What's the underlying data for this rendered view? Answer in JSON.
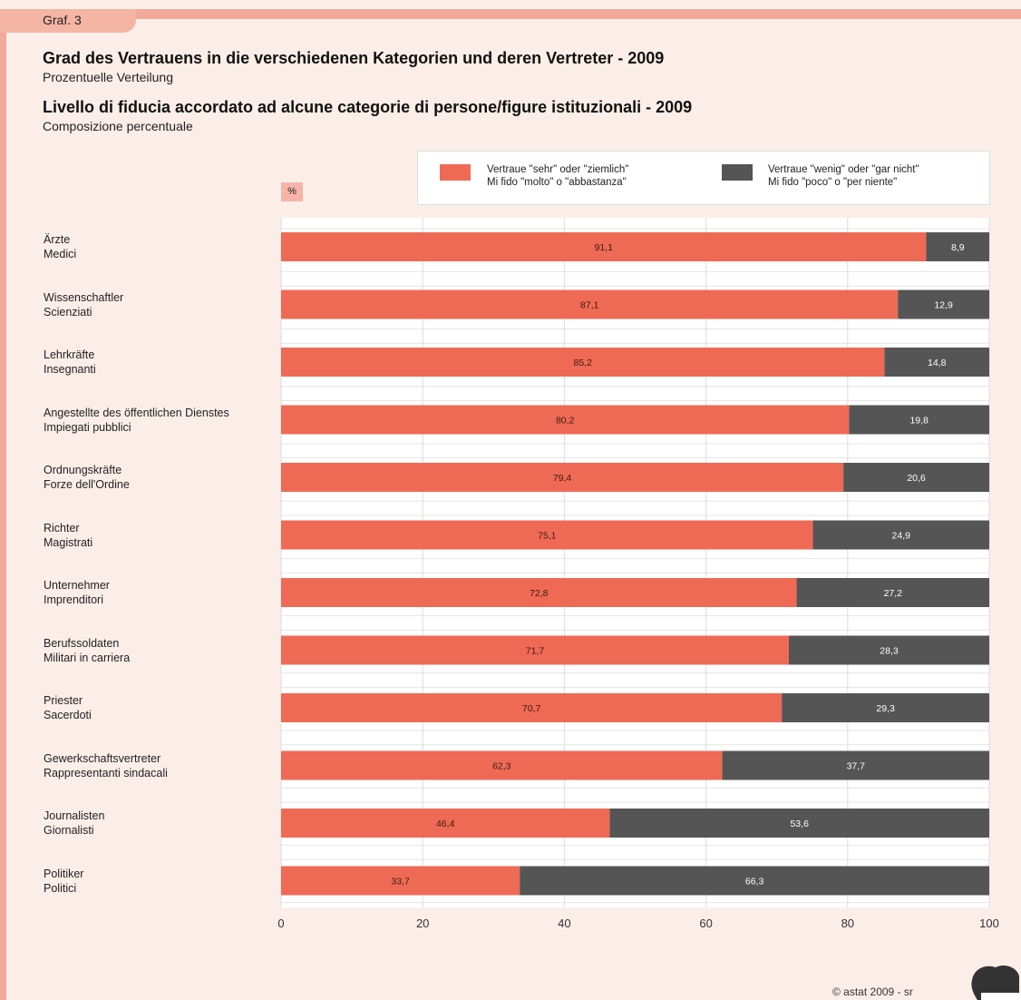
{
  "header": {
    "graf_label": "Graf. 3",
    "title_de": "Grad des Vertrauens in die verschiedenen Kategorien und deren Vertreter - 2009",
    "subtitle_de": "Prozentuelle Verteilung",
    "title_it": "Livello di fiducia accordato ad alcune categorie di persone/figure istituzionali - 2009",
    "subtitle_it": "Composizione percentuale"
  },
  "unit": "%",
  "legend": {
    "trust": {
      "line1": "Vertraue \"sehr\" oder \"ziemlich\"",
      "line2": "Mi fido \"molto\" o \"abbastanza\""
    },
    "distrust": {
      "line1": "Vertraue \"wenig\" oder \"gar nicht\"",
      "line2": "Mi fido \"poco\" o \"per niente\""
    }
  },
  "colors": {
    "trust": "#ef6a55",
    "distrust": "#555555",
    "background": "#fbeee8",
    "accent": "#f2a99a"
  },
  "footer": {
    "copyright": "© astat 2009 - sr"
  },
  "chart_data": {
    "type": "bar",
    "orientation": "horizontal",
    "stacked": true,
    "categories": [
      [
        "Ärzte",
        "Medici"
      ],
      [
        "Wissenschaftler",
        "Scienziati"
      ],
      [
        "Lehrkräfte",
        "Insegnanti"
      ],
      [
        "Angestellte des öffentlichen Dienstes",
        "Impiegati pubblici"
      ],
      [
        "Ordnungskräfte",
        "Forze dell'Ordine"
      ],
      [
        "Richter",
        "Magistrati"
      ],
      [
        "Unternehmer",
        "Imprenditori"
      ],
      [
        "Berufssoldaten",
        "Militari in carriera"
      ],
      [
        "Priester",
        "Sacerdoti"
      ],
      [
        "Gewerkschaftsvertreter",
        "Rappresentanti sindacali"
      ],
      [
        "Journalisten",
        "Giornalisti"
      ],
      [
        "Politiker",
        "Politici"
      ]
    ],
    "series": [
      {
        "values": [
          91.1,
          87.1,
          85.2,
          80.2,
          79.4,
          75.1,
          72.8,
          71.7,
          70.7,
          62.3,
          46.4,
          33.7
        ],
        "labels": [
          "91,1",
          "87,1",
          "85,2",
          "80,2",
          "79,4",
          "75,1",
          "72,8",
          "71,7",
          "70,7",
          "62,3",
          "46,4",
          "33,7"
        ]
      },
      {
        "values": [
          8.9,
          12.9,
          14.8,
          19.8,
          20.6,
          24.9,
          27.2,
          28.3,
          29.3,
          37.7,
          53.6,
          66.3
        ],
        "labels": [
          "8,9",
          "12,9",
          "14,8",
          "19,8",
          "20,6",
          "24,9",
          "27,2",
          "28,3",
          "29,3",
          "37,7",
          "53,6",
          "66,3"
        ]
      }
    ],
    "xlim": [
      0,
      100
    ],
    "xticks": [
      0,
      20,
      40,
      60,
      80,
      100
    ],
    "grid": true,
    "legend_position": "top-right"
  }
}
